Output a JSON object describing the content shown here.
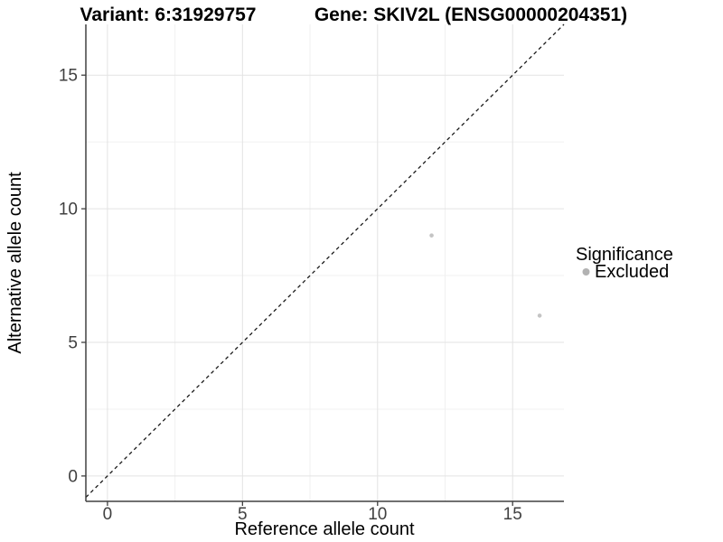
{
  "titles": {
    "variant": "Variant: 6:31929757",
    "gene": "Gene: SKIV2L (ENSG00000204351)"
  },
  "axes": {
    "x_label": "Reference allele count",
    "y_label": "Alternative allele count"
  },
  "legend": {
    "title": "Significance",
    "position": "right",
    "entries": [
      {
        "label": "Excluded",
        "color": "#b2b2b2"
      }
    ]
  },
  "chart_data": {
    "type": "scatter",
    "title": "Variant: 6:31929757 | Gene: SKIV2L (ENSG00000204351)",
    "xlabel": "Reference allele count",
    "ylabel": "Alternative allele count",
    "xlim": [
      -0.8,
      16.9
    ],
    "ylim": [
      -0.95,
      16.9
    ],
    "x_ticks": [
      0,
      5,
      10,
      15
    ],
    "y_ticks": [
      0,
      5,
      10,
      15
    ],
    "x_minor_gridlines": [
      2.5,
      7.5,
      12.5
    ],
    "y_minor_gridlines": [
      2.5,
      7.5,
      12.5
    ],
    "grid": "major and minor gridlines on white panel",
    "legend_position": "right",
    "identity_line": {
      "style": "dashed",
      "equation": "y = x"
    },
    "series": [
      {
        "name": "Excluded",
        "marker_color": "#c4c4c4",
        "points": [
          {
            "x": 12,
            "y": 9
          },
          {
            "x": 16,
            "y": 6
          }
        ]
      }
    ]
  },
  "style": {
    "point_color": "#c4c4c4",
    "point_radius": 2.3,
    "legend_dot_color": "#b2b2b2",
    "major_grid_color": "#e3e3e3",
    "minor_grid_color": "#f0f0f0",
    "axis_line_color": "#404040",
    "tick_label_color": "#404040",
    "identity_line_color": "#1a1a1a"
  }
}
